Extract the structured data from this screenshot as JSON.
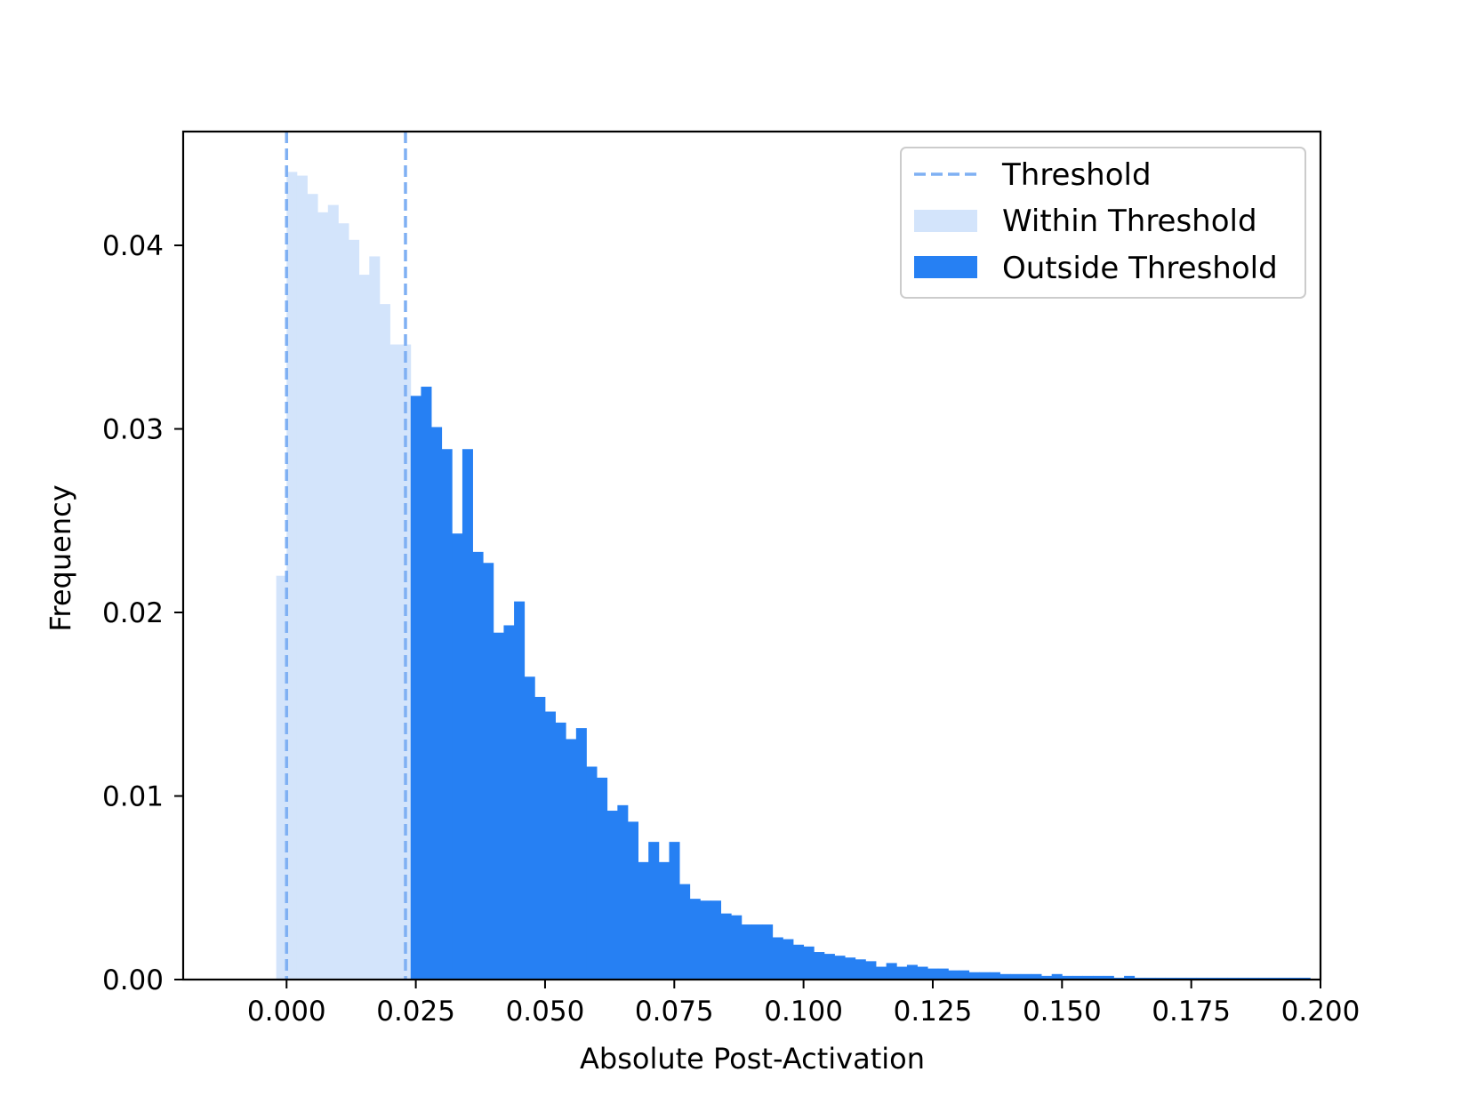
{
  "chart_data": {
    "type": "bar",
    "xlabel": "Absolute Post-Activation",
    "ylabel": "Frequency",
    "xlim": [
      -0.02,
      0.2
    ],
    "ylim": [
      0,
      0.0462
    ],
    "x_ticks": [
      "0.000",
      "0.025",
      "0.050",
      "0.075",
      "0.100",
      "0.125",
      "0.150",
      "0.175",
      "0.200"
    ],
    "x_tick_values": [
      0,
      0.025,
      0.05,
      0.075,
      0.1,
      0.125,
      0.15,
      0.175,
      0.2
    ],
    "y_ticks": [
      "0.00",
      "0.01",
      "0.02",
      "0.03",
      "0.04"
    ],
    "y_tick_values": [
      0,
      0.01,
      0.02,
      0.03,
      0.04
    ],
    "grid": false,
    "legend_position": "top-right",
    "thresholds": [
      0,
      0.023
    ],
    "bin_width": 0.002,
    "colors": {
      "within": "#d3e4fb",
      "outside": "#2680f3",
      "threshold_line": "#7fb0f3"
    },
    "legend": [
      {
        "label": "Threshold",
        "style": "dashed-line",
        "color": "#7fb0f3"
      },
      {
        "label": "Within Threshold",
        "style": "patch",
        "color": "#d3e4fb"
      },
      {
        "label": "Outside Threshold",
        "style": "patch",
        "color": "#2680f3"
      }
    ],
    "series": [
      {
        "name": "Within Threshold",
        "bins": [
          {
            "x": -0.002,
            "y": 0.022
          },
          {
            "x": 0.0,
            "y": 0.044
          },
          {
            "x": 0.002,
            "y": 0.0438
          },
          {
            "x": 0.004,
            "y": 0.0428
          },
          {
            "x": 0.006,
            "y": 0.0418
          },
          {
            "x": 0.008,
            "y": 0.0422
          },
          {
            "x": 0.01,
            "y": 0.0412
          },
          {
            "x": 0.012,
            "y": 0.0403
          },
          {
            "x": 0.014,
            "y": 0.0384
          },
          {
            "x": 0.016,
            "y": 0.0394
          },
          {
            "x": 0.018,
            "y": 0.0368
          },
          {
            "x": 0.02,
            "y": 0.0346
          },
          {
            "x": 0.022,
            "y": 0.0346
          }
        ]
      },
      {
        "name": "Outside Threshold",
        "bins": [
          {
            "x": 0.024,
            "y": 0.0318
          },
          {
            "x": 0.026,
            "y": 0.0323
          },
          {
            "x": 0.028,
            "y": 0.0301
          },
          {
            "x": 0.03,
            "y": 0.0289
          },
          {
            "x": 0.032,
            "y": 0.0243
          },
          {
            "x": 0.034,
            "y": 0.0289
          },
          {
            "x": 0.036,
            "y": 0.0233
          },
          {
            "x": 0.038,
            "y": 0.0227
          },
          {
            "x": 0.04,
            "y": 0.0189
          },
          {
            "x": 0.042,
            "y": 0.0193
          },
          {
            "x": 0.044,
            "y": 0.0206
          },
          {
            "x": 0.046,
            "y": 0.0165
          },
          {
            "x": 0.048,
            "y": 0.0154
          },
          {
            "x": 0.05,
            "y": 0.0146
          },
          {
            "x": 0.052,
            "y": 0.014
          },
          {
            "x": 0.054,
            "y": 0.0131
          },
          {
            "x": 0.056,
            "y": 0.0137
          },
          {
            "x": 0.058,
            "y": 0.0116
          },
          {
            "x": 0.06,
            "y": 0.011
          },
          {
            "x": 0.062,
            "y": 0.0092
          },
          {
            "x": 0.064,
            "y": 0.0095
          },
          {
            "x": 0.066,
            "y": 0.0086
          },
          {
            "x": 0.068,
            "y": 0.0064
          },
          {
            "x": 0.07,
            "y": 0.0075
          },
          {
            "x": 0.072,
            "y": 0.0064
          },
          {
            "x": 0.074,
            "y": 0.0075
          },
          {
            "x": 0.076,
            "y": 0.0052
          },
          {
            "x": 0.078,
            "y": 0.0044
          },
          {
            "x": 0.08,
            "y": 0.0043
          },
          {
            "x": 0.082,
            "y": 0.0043
          },
          {
            "x": 0.084,
            "y": 0.0036
          },
          {
            "x": 0.086,
            "y": 0.0035
          },
          {
            "x": 0.088,
            "y": 0.003
          },
          {
            "x": 0.09,
            "y": 0.003
          },
          {
            "x": 0.092,
            "y": 0.003
          },
          {
            "x": 0.094,
            "y": 0.0023
          },
          {
            "x": 0.096,
            "y": 0.0022
          },
          {
            "x": 0.098,
            "y": 0.0019
          },
          {
            "x": 0.1,
            "y": 0.0018
          },
          {
            "x": 0.102,
            "y": 0.0015
          },
          {
            "x": 0.104,
            "y": 0.0014
          },
          {
            "x": 0.106,
            "y": 0.0013
          },
          {
            "x": 0.108,
            "y": 0.0012
          },
          {
            "x": 0.11,
            "y": 0.0011
          },
          {
            "x": 0.112,
            "y": 0.001
          },
          {
            "x": 0.114,
            "y": 0.0007
          },
          {
            "x": 0.116,
            "y": 0.0009
          },
          {
            "x": 0.118,
            "y": 0.0007
          },
          {
            "x": 0.12,
            "y": 0.0008
          },
          {
            "x": 0.122,
            "y": 0.0007
          },
          {
            "x": 0.124,
            "y": 0.0006
          },
          {
            "x": 0.126,
            "y": 0.0006
          },
          {
            "x": 0.128,
            "y": 0.0005
          },
          {
            "x": 0.13,
            "y": 0.0005
          },
          {
            "x": 0.132,
            "y": 0.0004
          },
          {
            "x": 0.134,
            "y": 0.0004
          },
          {
            "x": 0.136,
            "y": 0.0004
          },
          {
            "x": 0.138,
            "y": 0.0003
          },
          {
            "x": 0.14,
            "y": 0.0003
          },
          {
            "x": 0.142,
            "y": 0.0003
          },
          {
            "x": 0.144,
            "y": 0.0003
          },
          {
            "x": 0.146,
            "y": 0.0002
          },
          {
            "x": 0.148,
            "y": 0.0003
          },
          {
            "x": 0.15,
            "y": 0.0002
          },
          {
            "x": 0.152,
            "y": 0.0002
          },
          {
            "x": 0.154,
            "y": 0.0002
          },
          {
            "x": 0.156,
            "y": 0.0002
          },
          {
            "x": 0.158,
            "y": 0.0002
          },
          {
            "x": 0.16,
            "y": 0.0001
          },
          {
            "x": 0.162,
            "y": 0.0002
          },
          {
            "x": 0.164,
            "y": 0.0001
          },
          {
            "x": 0.166,
            "y": 0.0001
          },
          {
            "x": 0.168,
            "y": 0.0001
          },
          {
            "x": 0.17,
            "y": 0.0001
          },
          {
            "x": 0.172,
            "y": 0.0001
          },
          {
            "x": 0.174,
            "y": 0.0001
          },
          {
            "x": 0.176,
            "y": 0.0001
          },
          {
            "x": 0.178,
            "y": 0.0001
          },
          {
            "x": 0.18,
            "y": 0.0001
          },
          {
            "x": 0.182,
            "y": 0.0001
          },
          {
            "x": 0.184,
            "y": 0.0001
          },
          {
            "x": 0.186,
            "y": 0.0001
          },
          {
            "x": 0.188,
            "y": 0.0001
          },
          {
            "x": 0.19,
            "y": 0.0001
          },
          {
            "x": 0.192,
            "y": 0.0001
          },
          {
            "x": 0.194,
            "y": 0.0001
          },
          {
            "x": 0.196,
            "y": 0.0001
          }
        ]
      }
    ]
  }
}
